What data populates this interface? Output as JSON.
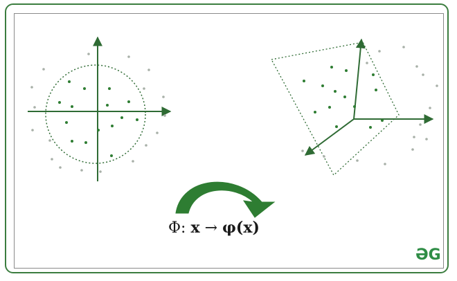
{
  "diagram": {
    "mapping_symbol": "Φ:",
    "mapping_input": "x",
    "mapping_arrow": "→",
    "mapping_output": "φ(x)",
    "logo_text": "ƏG"
  },
  "colors": {
    "frame_border": "#3b7d3f",
    "inner_points": "#2e7d32",
    "outer_points": "#a8b0a8",
    "axes": "#2f6b34",
    "curved_arrow": "#2e7d32"
  }
}
